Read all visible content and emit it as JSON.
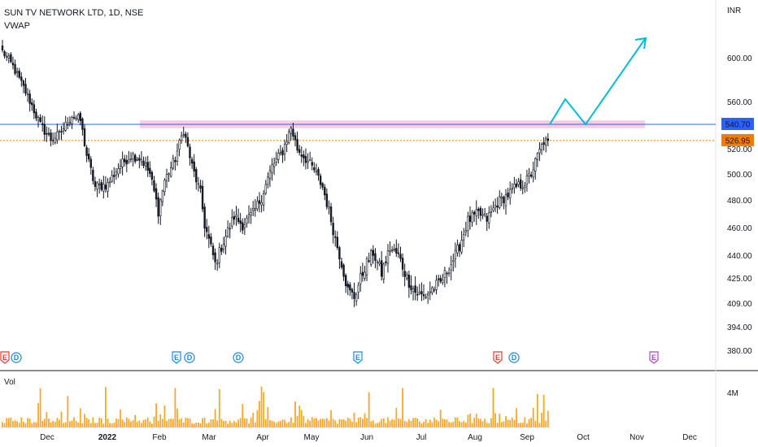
{
  "header": {
    "symbol_line": "SUN TV NETWORK LTD, 1D, NSE",
    "indicator": "VWAP",
    "currency": "INR",
    "volume_label": "Vol",
    "volume_scale_label": "4M"
  },
  "colors": {
    "up": "#ffffff",
    "down": "#131722",
    "wick": "#131722",
    "resistance_line": "#2962ff",
    "resistance_zone": "#f8bbd0",
    "last_price_line": "#f57c00",
    "projection": "#00bcd4",
    "volume_bar": "#f9a825",
    "earnings_badge": "#e53935",
    "earnings_badge_past": "#1e88e5",
    "dividend_badge": "#1e88e5",
    "future_badge": "#ab47bc"
  },
  "chart_data": {
    "type": "candlestick",
    "ylim": [
      372,
      627
    ],
    "y_ticks": [
      "600.00",
      "560.00",
      "520.00",
      "500.00",
      "480.00",
      "460.00",
      "440.00",
      "425.00",
      "409.00",
      "394.00",
      "380.00"
    ],
    "y_tick_values": [
      600,
      560,
      520,
      500,
      480,
      460,
      440,
      425,
      409,
      394,
      380
    ],
    "price_labels": [
      {
        "text": "540.70",
        "value": 540.7,
        "kind": "resistance"
      },
      {
        "text": "526.95",
        "value": 526.95,
        "kind": "last"
      }
    ],
    "x_ticks": [
      "Dec",
      "2022",
      "Feb",
      "Mar",
      "Apr",
      "May",
      "Jun",
      "Jul",
      "Aug",
      "Sep",
      "Oct",
      "Nov",
      "Dec"
    ],
    "anchors": [
      [
        0,
        606
      ],
      [
        5,
        592
      ],
      [
        12,
        565
      ],
      [
        18,
        540
      ],
      [
        23,
        528
      ],
      [
        27,
        532
      ],
      [
        33,
        548
      ],
      [
        37,
        544
      ],
      [
        40,
        515
      ],
      [
        44,
        490
      ],
      [
        50,
        492
      ],
      [
        55,
        505
      ],
      [
        61,
        515
      ],
      [
        66,
        512
      ],
      [
        70,
        500
      ],
      [
        74,
        472
      ],
      [
        77,
        495
      ],
      [
        82,
        512
      ],
      [
        86,
        536
      ],
      [
        90,
        506
      ],
      [
        94,
        485
      ],
      [
        96,
        462
      ],
      [
        101,
        434
      ],
      [
        106,
        454
      ],
      [
        110,
        468
      ],
      [
        114,
        462
      ],
      [
        119,
        470
      ],
      [
        123,
        482
      ],
      [
        128,
        506
      ],
      [
        133,
        518
      ],
      [
        137,
        538
      ],
      [
        140,
        520
      ],
      [
        144,
        512
      ],
      [
        148,
        503
      ],
      [
        152,
        490
      ],
      [
        155,
        472
      ],
      [
        158,
        452
      ],
      [
        161,
        435
      ],
      [
        164,
        417
      ],
      [
        167,
        413
      ],
      [
        172,
        432
      ],
      [
        176,
        442
      ],
      [
        180,
        428
      ],
      [
        184,
        445
      ],
      [
        188,
        440
      ],
      [
        192,
        425
      ],
      [
        196,
        416
      ],
      [
        200,
        413
      ],
      [
        204,
        418
      ],
      [
        208,
        422
      ],
      [
        212,
        432
      ],
      [
        215,
        440
      ],
      [
        217,
        447
      ],
      [
        221,
        465
      ],
      [
        226,
        470
      ],
      [
        230,
        466
      ],
      [
        235,
        478
      ],
      [
        240,
        484
      ],
      [
        244,
        490
      ],
      [
        248,
        493
      ],
      [
        251,
        500
      ],
      [
        254,
        514
      ],
      [
        257,
        526
      ],
      [
        259,
        526
      ]
    ],
    "resistance": 540.7,
    "last_close": 526.95,
    "zone": [
      537.5,
      544
    ],
    "projection_path": [
      [
        259,
        540.7
      ],
      [
        266,
        562
      ],
      [
        275,
        540.7
      ],
      [
        298,
        615
      ]
    ],
    "volume_max": 4.3,
    "earnings_events": [
      0,
      82,
      233
    ],
    "dividend_events": [
      5,
      86,
      110,
      241
    ],
    "future_event": 305,
    "trading_days": 260
  }
}
